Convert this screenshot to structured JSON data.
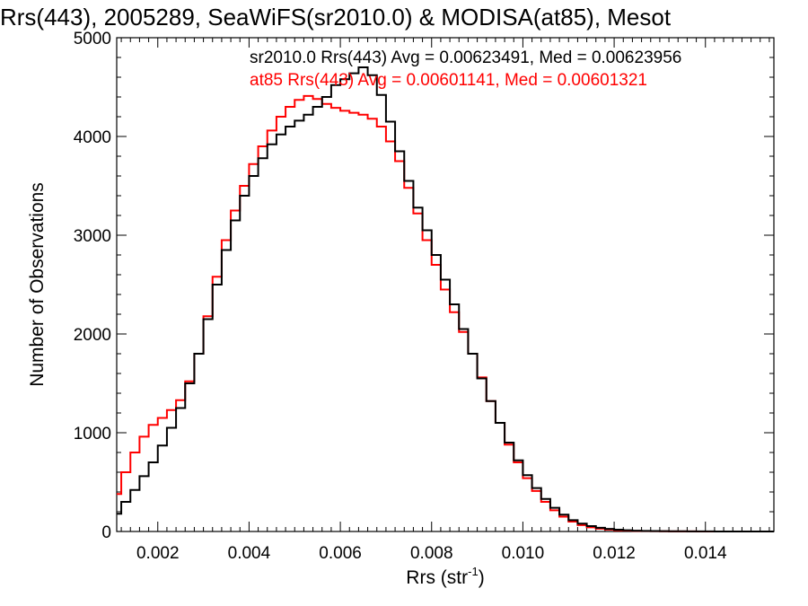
{
  "chart_data": {
    "type": "line",
    "style": "step-histogram",
    "title": "Rrs(443), 2005289, SeaWiFS(sr2010.0) & MODISA(at85), Mesot",
    "xlabel_main": "Rrs (str",
    "xlabel_sup": "-1",
    "xlabel_end": ")",
    "ylabel": "Number of Observations",
    "xlim": [
      0.0011,
      0.0155
    ],
    "ylim": [
      0,
      5000
    ],
    "x_ticks": [
      0.002,
      0.004,
      0.006,
      0.008,
      0.01,
      0.012,
      0.014
    ],
    "x_tick_labels": [
      "0.002",
      "0.004",
      "0.006",
      "0.008",
      "0.010",
      "0.012",
      "0.014"
    ],
    "y_ticks": [
      0,
      1000,
      2000,
      3000,
      4000,
      5000
    ],
    "y_tick_labels": [
      "0",
      "1000",
      "2000",
      "3000",
      "4000",
      "5000"
    ],
    "grid": false,
    "legend_position": "top",
    "x": [
      0.0011,
      0.0013,
      0.0015,
      0.0017,
      0.0019,
      0.0021,
      0.0023,
      0.0025,
      0.0027,
      0.0029,
      0.0031,
      0.0033,
      0.0035,
      0.0037,
      0.0039,
      0.0041,
      0.0043,
      0.0045,
      0.0047,
      0.0049,
      0.0051,
      0.0053,
      0.0055,
      0.0057,
      0.0059,
      0.0061,
      0.0063,
      0.0065,
      0.0067,
      0.0069,
      0.0071,
      0.0073,
      0.0075,
      0.0077,
      0.0079,
      0.0081,
      0.0083,
      0.0085,
      0.0087,
      0.0089,
      0.0091,
      0.0093,
      0.0095,
      0.0097,
      0.0099,
      0.0101,
      0.0103,
      0.0105,
      0.0107,
      0.0109,
      0.0111,
      0.0113,
      0.0115,
      0.0117,
      0.0119,
      0.0121,
      0.0123,
      0.0125,
      0.0127,
      0.0129,
      0.0131,
      0.0133,
      0.0135,
      0.0137,
      0.0139,
      0.0141,
      0.0143,
      0.0145,
      0.0147,
      0.0149,
      0.0151,
      0.0153,
      0.0155
    ],
    "series": [
      {
        "name": "sr2010.0",
        "color": "#000000",
        "legend_label": "sr2010.0 Rrs(443) Avg = 0.00623491, Med = 0.00623956",
        "values": [
          180,
          300,
          420,
          560,
          700,
          870,
          1050,
          1250,
          1500,
          1800,
          2150,
          2500,
          2850,
          3150,
          3400,
          3600,
          3780,
          3920,
          4020,
          4100,
          4160,
          4220,
          4300,
          4400,
          4520,
          4580,
          4640,
          4700,
          4620,
          4420,
          4150,
          3850,
          3550,
          3280,
          3050,
          2800,
          2550,
          2300,
          2050,
          1800,
          1550,
          1320,
          1100,
          900,
          720,
          570,
          440,
          330,
          240,
          170,
          115,
          80,
          55,
          38,
          26,
          18,
          12,
          8,
          6,
          4,
          3,
          2,
          2,
          1,
          1,
          1,
          0,
          0,
          0,
          0,
          0,
          0,
          0
        ]
      },
      {
        "name": "at85",
        "color": "#ff0000",
        "legend_label": "at85 Rrs(443) Avg = 0.00601141, Med = 0.00601321",
        "values": [
          380,
          600,
          800,
          960,
          1080,
          1150,
          1230,
          1330,
          1520,
          1800,
          2180,
          2580,
          2950,
          3250,
          3500,
          3720,
          3900,
          4060,
          4200,
          4300,
          4370,
          4410,
          4380,
          4330,
          4290,
          4260,
          4240,
          4220,
          4180,
          4100,
          3950,
          3750,
          3480,
          3220,
          2950,
          2700,
          2450,
          2220,
          2020,
          1800,
          1560,
          1320,
          1100,
          880,
          700,
          540,
          410,
          300,
          215,
          150,
          100,
          65,
          42,
          28,
          19,
          13,
          9,
          6,
          4,
          3,
          2,
          1,
          1,
          1,
          0,
          0,
          0,
          0,
          0,
          0,
          0,
          0,
          0
        ]
      }
    ]
  }
}
